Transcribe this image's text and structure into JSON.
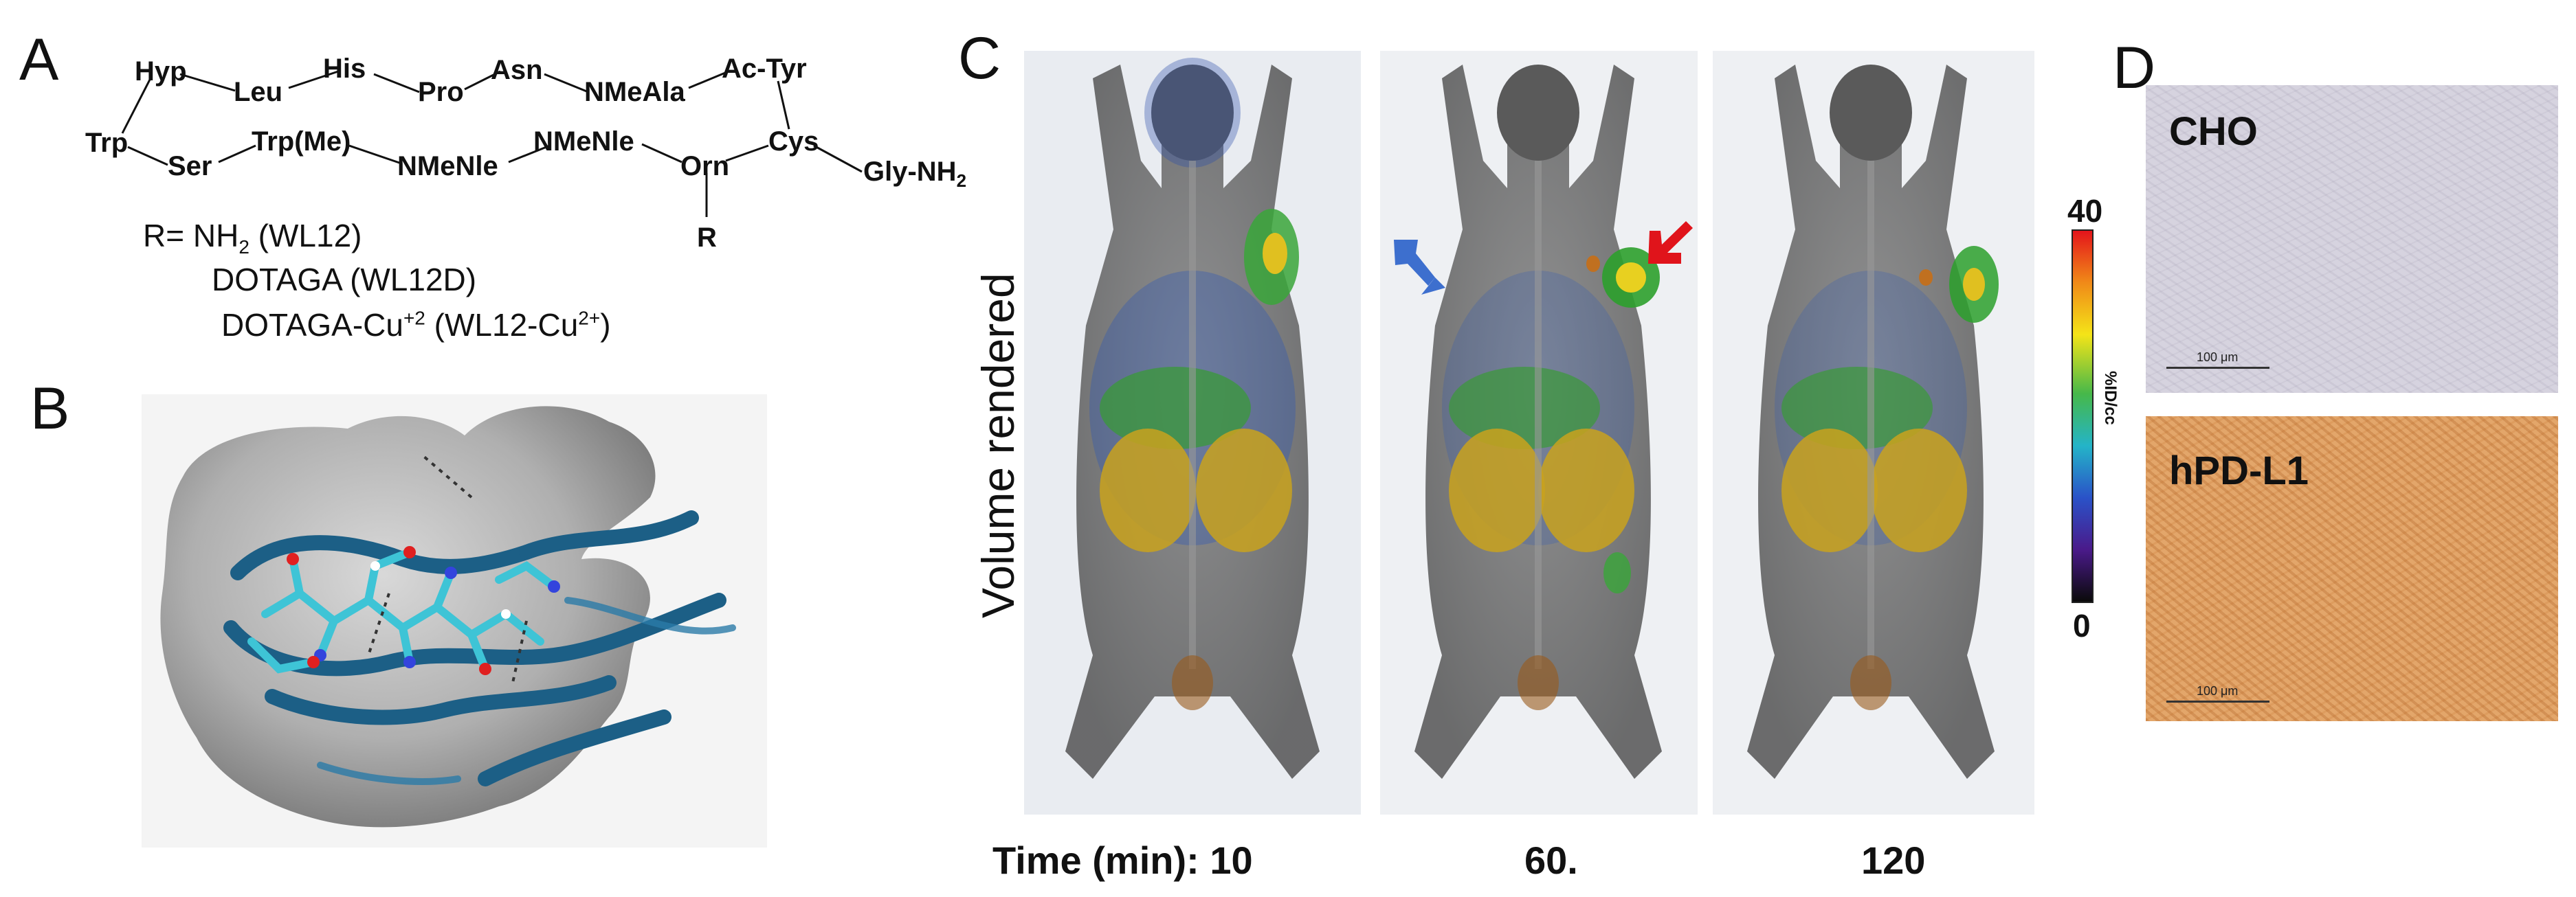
{
  "panel_labels": {
    "a": "A",
    "b": "B",
    "c": "C",
    "d": "D"
  },
  "panel_a": {
    "top_row": [
      "Hyp",
      "Leu",
      "His",
      "Pro",
      "Asn",
      "NMeAla",
      "Ac-Tyr"
    ],
    "bottom_row": [
      "Trp",
      "Ser",
      "Trp(Me)",
      "NMeNle",
      "NMeNle",
      "Orn",
      "Cys",
      "Gly-NH"
    ],
    "gly_subscript": "2",
    "r_label": "R",
    "r_lines": [
      {
        "prefix": "R= NH",
        "sub": "2",
        "suffix": "  (WL12)"
      },
      {
        "text": "DOTAGA (WL12D)"
      },
      {
        "prefix": "DOTAGA-Cu",
        "sup": "+2",
        "mid": " (WL12-Cu",
        "sup2": "2+",
        "suffix": ")"
      }
    ]
  },
  "panel_c": {
    "vertical_label": "Volume rendered",
    "time_labels": [
      "Time (min): 10",
      "60.",
      "120"
    ],
    "scale_max": "40",
    "scale_min": "0",
    "scale_unit": "%ID/cc",
    "arrow_colors": {
      "blue": "#3d6fce",
      "red": "#e0141b"
    }
  },
  "panel_d": {
    "top_label": "CHO",
    "bottom_label": "hPD-L1",
    "scale_bar_text": "100 μm"
  }
}
